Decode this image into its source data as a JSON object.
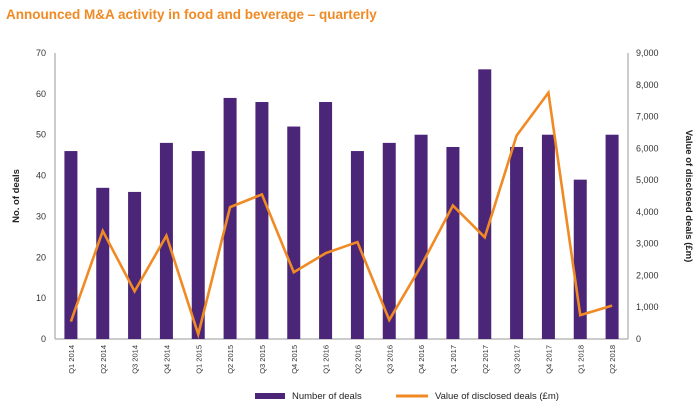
{
  "title": "Announced M&A activity in food and beverage – quarterly",
  "chart_data": {
    "type": "bar",
    "title": "Announced M&A activity in food and beverage – quarterly",
    "categories": [
      "Q1 2014",
      "Q2 2014",
      "Q3 2014",
      "Q4 2014",
      "Q1 2015",
      "Q2 2015",
      "Q3 2015",
      "Q4 2015",
      "Q1 2016",
      "Q2 2016",
      "Q3 2016",
      "Q4 2016",
      "Q1 2017",
      "Q2 2017",
      "Q3 2017",
      "Q4 2017",
      "Q1 2018",
      "Q2 2018"
    ],
    "ylabel": "No. of deals",
    "y2label": "Value of disclosed deals (£m)",
    "ylim": [
      0,
      70
    ],
    "y2lim": [
      0,
      9000
    ],
    "yticks": [
      "0",
      "10",
      "20",
      "30",
      "40",
      "50",
      "60",
      "70"
    ],
    "y2ticks": [
      "0",
      "1,000",
      "2,000",
      "3,000",
      "4,000",
      "5,000",
      "6,000",
      "7,000",
      "8,000",
      "9,000"
    ],
    "grid": false,
    "legend_position": "bottom",
    "series": [
      {
        "name": "Number of deals",
        "type": "bar",
        "axis": "left",
        "color": "#4a2578",
        "values": [
          46,
          37,
          36,
          48,
          46,
          59,
          58,
          52,
          58,
          46,
          48,
          50,
          47,
          66,
          47,
          50,
          39,
          50
        ]
      },
      {
        "name": "Value of disclosed deals (£m)",
        "type": "line",
        "axis": "right",
        "color": "#f08a24",
        "values": [
          550,
          3400,
          1500,
          3250,
          150,
          4150,
          4550,
          2100,
          2700,
          3050,
          600,
          2300,
          4200,
          3200,
          6400,
          7750,
          750,
          1050
        ]
      }
    ]
  }
}
